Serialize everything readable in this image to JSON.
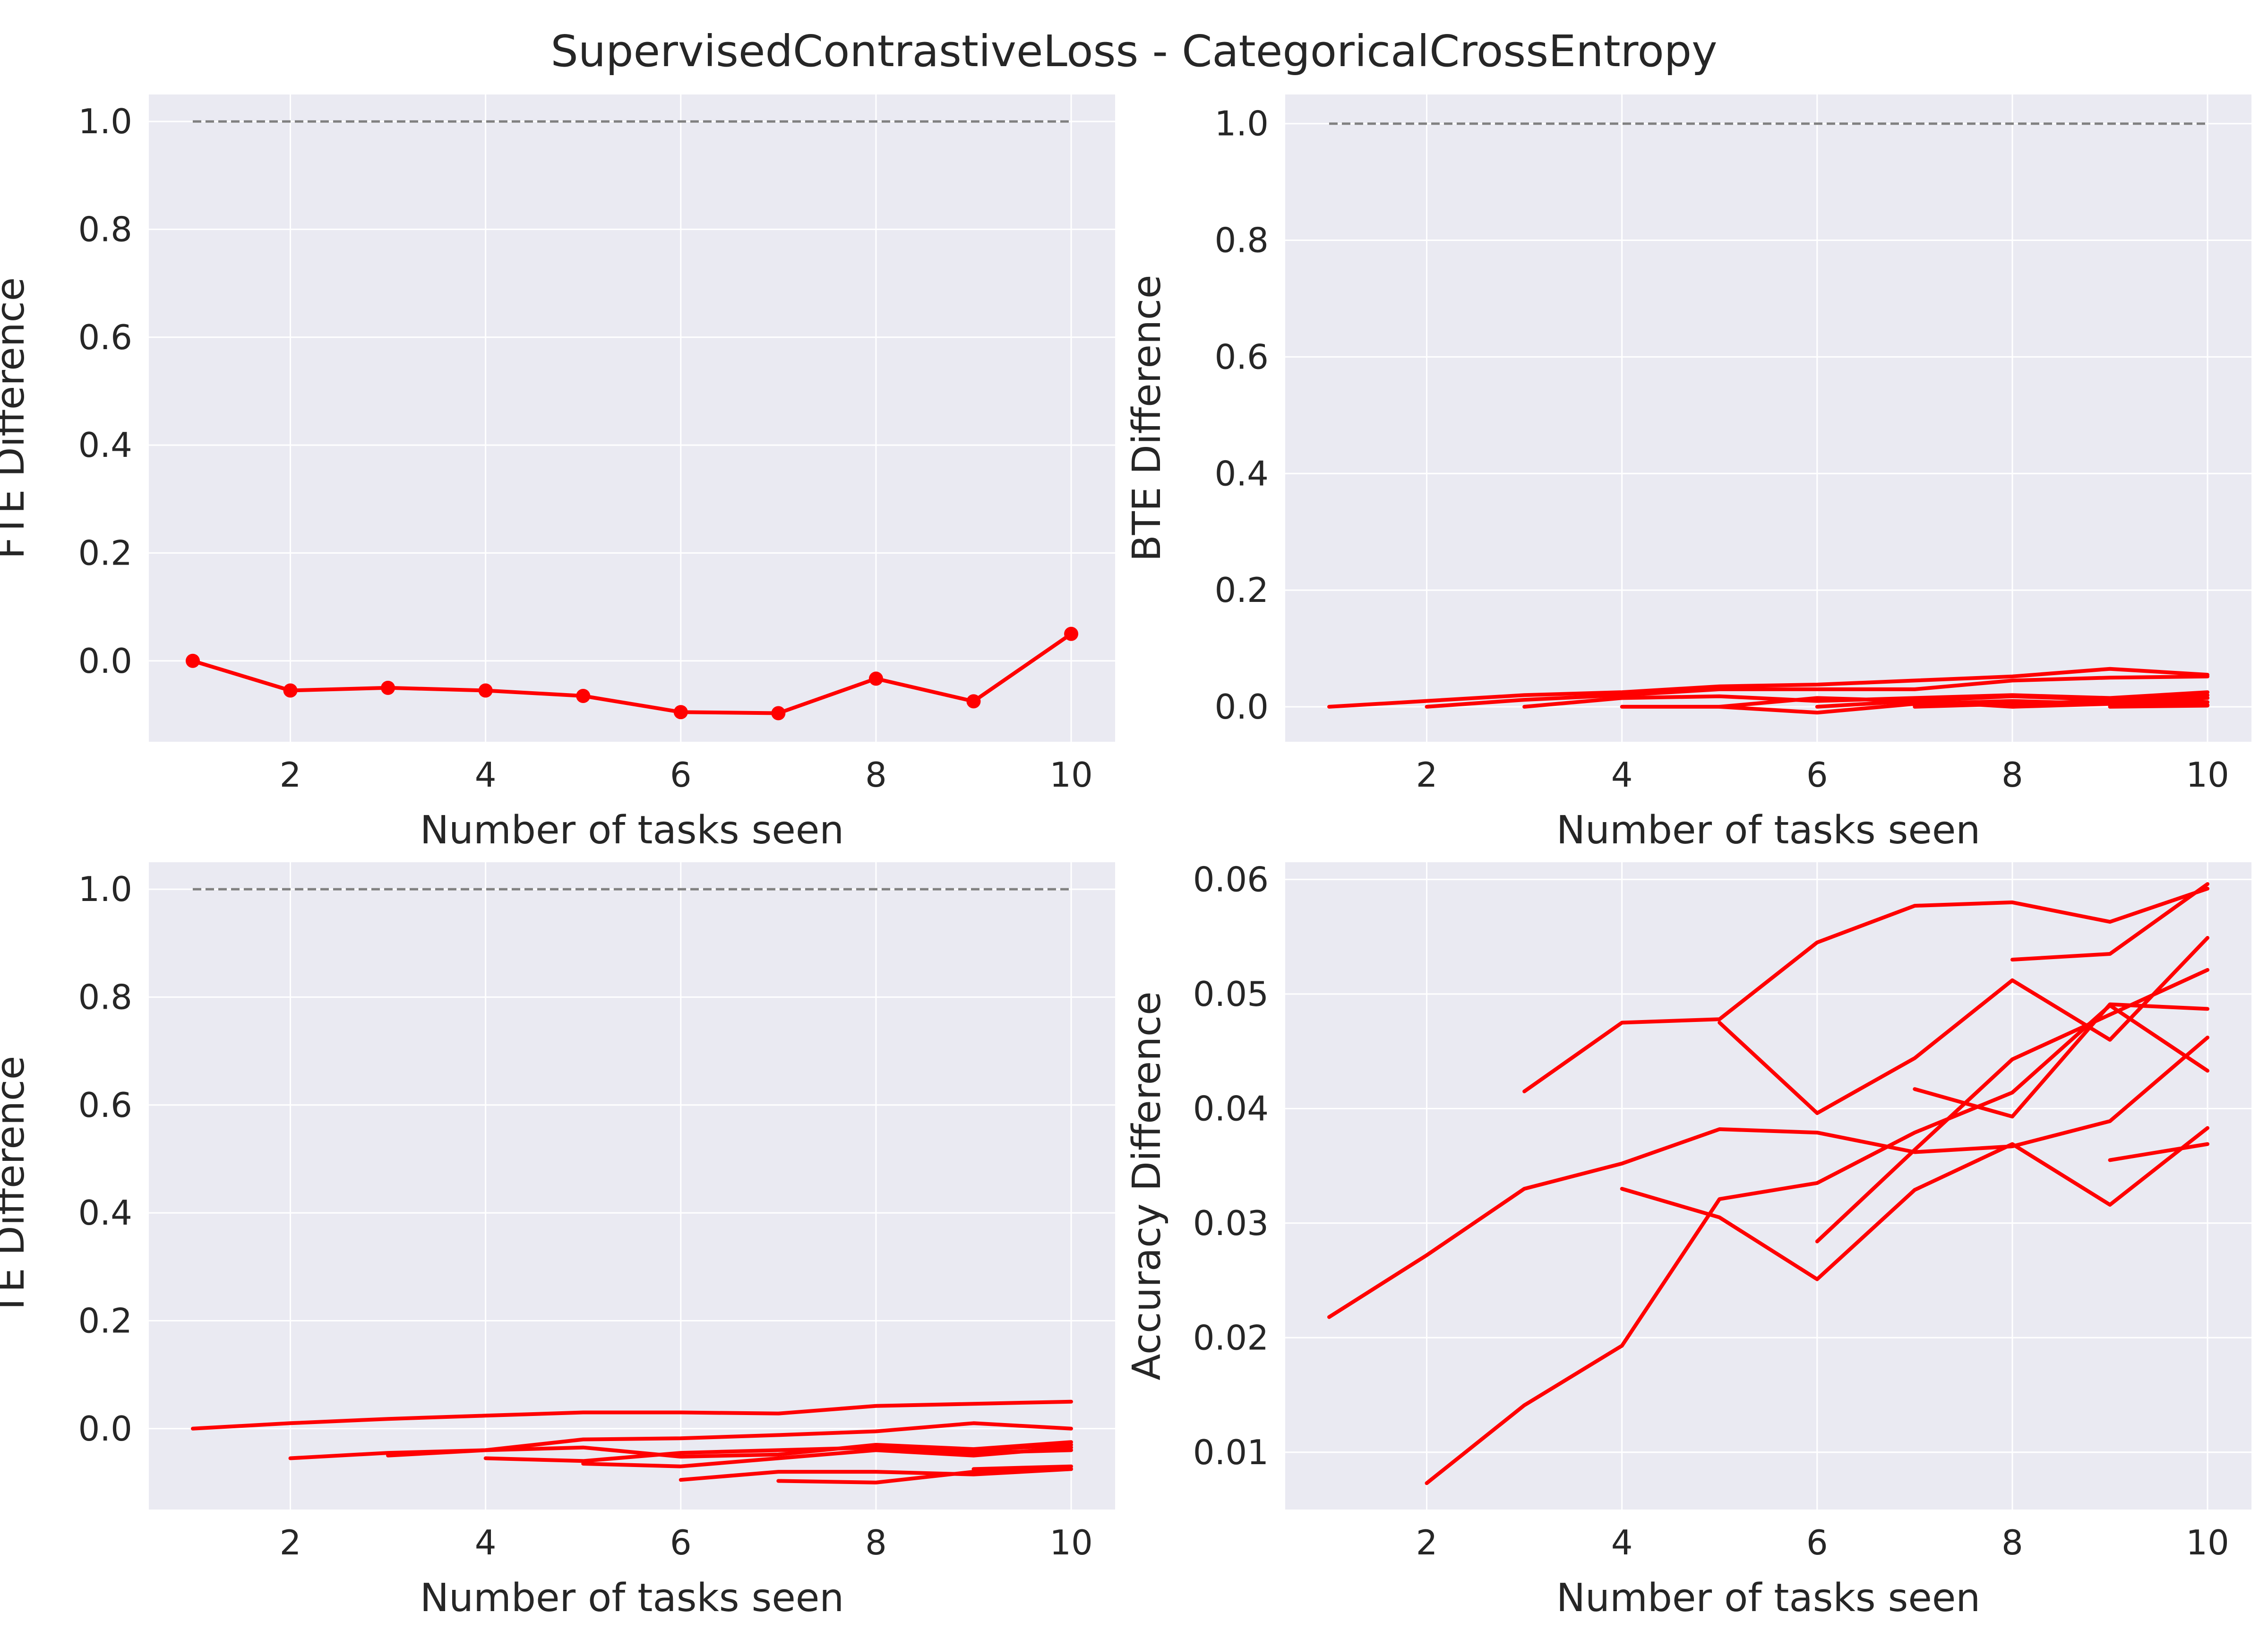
{
  "title": "SupervisedContrastiveLoss - CategoricalCrossEntropy",
  "colors": {
    "series": "#ff0000",
    "reference": "#808080",
    "panel_background": "#eaeaf2",
    "grid": "#ffffff"
  },
  "chart_data": [
    {
      "type": "line",
      "xlabel": "Number of tasks seen",
      "ylabel": "FTE Difference",
      "xlim": [
        0.55,
        10.45
      ],
      "ylim": [
        -0.15,
        1.05
      ],
      "xticks": [
        2,
        4,
        6,
        8,
        10
      ],
      "yticks": [
        0.0,
        0.2,
        0.4,
        0.6,
        0.8,
        1.0
      ],
      "grid": true,
      "reference_line": {
        "y": 1.0,
        "x": [
          1,
          10
        ],
        "style": "dashed"
      },
      "markers": true,
      "series": [
        {
          "x": [
            1,
            2,
            3,
            4,
            5,
            6,
            7,
            8,
            9,
            10
          ],
          "y": [
            0.0,
            -0.055,
            -0.05,
            -0.055,
            -0.065,
            -0.095,
            -0.097,
            -0.033,
            -0.075,
            0.05
          ]
        }
      ]
    },
    {
      "type": "line",
      "xlabel": "Number of tasks seen",
      "ylabel": "BTE Difference",
      "xlim": [
        0.55,
        10.45
      ],
      "ylim": [
        -0.06,
        1.05
      ],
      "xticks": [
        2,
        4,
        6,
        8,
        10
      ],
      "yticks": [
        0.0,
        0.2,
        0.4,
        0.6,
        0.8,
        1.0
      ],
      "grid": true,
      "reference_line": {
        "y": 1.0,
        "x": [
          1,
          10
        ],
        "style": "dashed"
      },
      "markers": false,
      "series": [
        {
          "x": [
            1,
            2,
            3,
            4,
            5,
            6,
            7,
            8,
            9,
            10
          ],
          "y": [
            0.0,
            0.01,
            0.02,
            0.025,
            0.035,
            0.038,
            0.045,
            0.052,
            0.065,
            0.055
          ]
        },
        {
          "x": [
            2,
            3,
            4,
            5,
            6,
            7,
            8,
            9,
            10
          ],
          "y": [
            0.0,
            0.012,
            0.02,
            0.03,
            0.03,
            0.03,
            0.045,
            0.05,
            0.052
          ]
        },
        {
          "x": [
            3,
            4,
            5,
            6,
            7,
            8,
            9,
            10
          ],
          "y": [
            0.0,
            0.015,
            0.018,
            0.01,
            0.015,
            0.02,
            0.015,
            0.025
          ]
        },
        {
          "x": [
            4,
            5,
            6,
            7,
            8,
            9,
            10
          ],
          "y": [
            0.0,
            0.0,
            0.015,
            0.01,
            0.018,
            0.012,
            0.02
          ]
        },
        {
          "x": [
            5,
            6,
            7,
            8,
            9,
            10
          ],
          "y": [
            0.0,
            -0.01,
            0.005,
            0.01,
            0.005,
            0.015
          ]
        },
        {
          "x": [
            6,
            7,
            8,
            9,
            10
          ],
          "y": [
            0.0,
            0.01,
            0.0,
            0.01,
            0.008
          ]
        },
        {
          "x": [
            7,
            8,
            9,
            10
          ],
          "y": [
            0.0,
            0.005,
            0.01,
            0.015
          ]
        },
        {
          "x": [
            8,
            9,
            10
          ],
          "y": [
            0.0,
            0.005,
            0.003
          ]
        },
        {
          "x": [
            9,
            10
          ],
          "y": [
            0.0,
            0.002
          ]
        }
      ]
    },
    {
      "type": "line",
      "xlabel": "Number of tasks seen",
      "ylabel": "TE Difference",
      "xlim": [
        0.55,
        10.45
      ],
      "ylim": [
        -0.15,
        1.05
      ],
      "xticks": [
        2,
        4,
        6,
        8,
        10
      ],
      "yticks": [
        0.0,
        0.2,
        0.4,
        0.6,
        0.8,
        1.0
      ],
      "grid": true,
      "reference_line": {
        "y": 1.0,
        "x": [
          1,
          10
        ],
        "style": "dashed"
      },
      "markers": false,
      "series": [
        {
          "x": [
            1,
            2,
            3,
            4,
            5,
            6,
            7,
            8,
            9,
            10
          ],
          "y": [
            0.0,
            0.01,
            0.018,
            0.024,
            0.03,
            0.03,
            0.028,
            0.042,
            0.046,
            0.05
          ]
        },
        {
          "x": [
            2,
            3,
            4,
            5,
            6,
            7,
            8,
            9,
            10
          ],
          "y": [
            -0.055,
            -0.045,
            -0.04,
            -0.02,
            -0.018,
            -0.012,
            -0.005,
            0.01,
            0.0
          ]
        },
        {
          "x": [
            3,
            4,
            5,
            6,
            7,
            8,
            9,
            10
          ],
          "y": [
            -0.05,
            -0.04,
            -0.035,
            -0.052,
            -0.048,
            -0.03,
            -0.038,
            -0.025
          ]
        },
        {
          "x": [
            4,
            5,
            6,
            7,
            8,
            9,
            10
          ],
          "y": [
            -0.055,
            -0.06,
            -0.045,
            -0.04,
            -0.035,
            -0.045,
            -0.04
          ]
        },
        {
          "x": [
            5,
            6,
            7,
            8,
            9,
            10
          ],
          "y": [
            -0.065,
            -0.07,
            -0.055,
            -0.04,
            -0.05,
            -0.035
          ]
        },
        {
          "x": [
            6,
            7,
            8,
            9,
            10
          ],
          "y": [
            -0.095,
            -0.08,
            -0.08,
            -0.085,
            -0.075
          ]
        },
        {
          "x": [
            7,
            8,
            9,
            10
          ],
          "y": [
            -0.097,
            -0.1,
            -0.08,
            -0.075
          ]
        },
        {
          "x": [
            8,
            9,
            10
          ],
          "y": [
            -0.033,
            -0.04,
            -0.03
          ]
        },
        {
          "x": [
            9,
            10
          ],
          "y": [
            -0.075,
            -0.07
          ]
        }
      ]
    },
    {
      "type": "line",
      "xlabel": "Number of tasks seen",
      "ylabel": "Accuracy Difference",
      "xlim": [
        0.55,
        10.45
      ],
      "ylim": [
        0.005,
        0.0615
      ],
      "xticks": [
        2,
        4,
        6,
        8,
        10
      ],
      "yticks": [
        0.01,
        0.02,
        0.03,
        0.04,
        0.05,
        0.06
      ],
      "grid": true,
      "markers": false,
      "series": [
        {
          "x": [
            1,
            2,
            3,
            4,
            5,
            6,
            7,
            8,
            9,
            10
          ],
          "y": [
            0.0218,
            0.0272,
            0.033,
            0.0352,
            0.0382,
            0.0379,
            0.0362,
            0.0367,
            0.0389,
            0.0462
          ]
        },
        {
          "x": [
            2,
            3,
            4,
            5,
            6,
            7,
            8,
            9,
            10
          ],
          "y": [
            0.0073,
            0.0141,
            0.0193,
            0.0321,
            0.0335,
            0.0379,
            0.0414,
            0.049,
            0.0433
          ]
        },
        {
          "x": [
            3,
            4,
            5,
            6,
            7,
            8,
            9,
            10
          ],
          "y": [
            0.0415,
            0.0475,
            0.0478,
            0.0545,
            0.0577,
            0.058,
            0.0563,
            0.0592
          ]
        },
        {
          "x": [
            4,
            5,
            6,
            7,
            8,
            9,
            10
          ],
          "y": [
            0.033,
            0.0305,
            0.0251,
            0.0329,
            0.0369,
            0.0316,
            0.0383
          ]
        },
        {
          "x": [
            5,
            6,
            7,
            8,
            9,
            10
          ],
          "y": [
            0.0475,
            0.0396,
            0.0444,
            0.0512,
            0.046,
            0.0549
          ]
        },
        {
          "x": [
            6,
            7,
            8,
            9,
            10
          ],
          "y": [
            0.0284,
            0.0364,
            0.0443,
            0.0482,
            0.0521
          ]
        },
        {
          "x": [
            7,
            8,
            9,
            10
          ],
          "y": [
            0.0417,
            0.0393,
            0.0491,
            0.0487
          ]
        },
        {
          "x": [
            8,
            9,
            10
          ],
          "y": [
            0.053,
            0.0535,
            0.0596
          ]
        },
        {
          "x": [
            9,
            10
          ],
          "y": [
            0.0355,
            0.0369
          ]
        }
      ]
    }
  ]
}
